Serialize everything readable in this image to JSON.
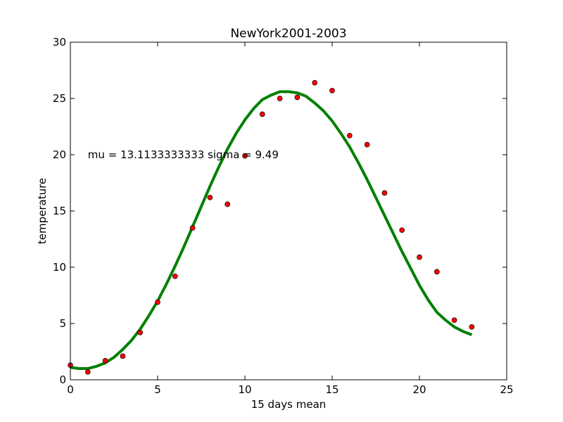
{
  "chart_data": {
    "type": "scatter",
    "title": "NewYork2001-2003",
    "xlabel": "15 days mean",
    "ylabel": "temperature",
    "xlim": [
      0,
      25
    ],
    "ylim": [
      0,
      30
    ],
    "xticks": [
      0,
      5,
      10,
      15,
      20,
      25
    ],
    "yticks": [
      0,
      5,
      10,
      15,
      20,
      25,
      30
    ],
    "grid": false,
    "annotation": {
      "text": "mu = 13.1133333333 sigma = 9.49",
      "x": 1,
      "y": 20
    },
    "points": {
      "color": "#ff0000",
      "x": [
        0,
        1,
        2,
        3,
        4,
        5,
        6,
        7,
        8,
        9,
        10,
        11,
        12,
        13,
        14,
        15,
        16,
        17,
        18,
        19,
        20,
        21,
        22,
        23
      ],
      "y": [
        1.3,
        0.7,
        1.7,
        2.1,
        4.2,
        6.9,
        9.2,
        13.5,
        16.2,
        15.6,
        19.9,
        23.6,
        25.0,
        25.1,
        26.4,
        25.7,
        21.7,
        20.9,
        16.6,
        13.3,
        10.9,
        9.6,
        5.3,
        4.7
      ]
    },
    "fit_curve": {
      "color": "#008000",
      "x": [
        0,
        0.5,
        1,
        1.5,
        2,
        2.5,
        3,
        3.5,
        4,
        4.5,
        5,
        5.5,
        6,
        6.5,
        7,
        7.5,
        8,
        8.5,
        9,
        9.5,
        10,
        10.5,
        11,
        11.5,
        12,
        12.5,
        13,
        13.5,
        14,
        14.5,
        15,
        15.5,
        16,
        16.5,
        17,
        17.5,
        18,
        18.5,
        19,
        19.5,
        20,
        20.5,
        21,
        21.5,
        22,
        22.5,
        23
      ],
      "y": [
        1.1,
        1.0,
        1.0,
        1.2,
        1.5,
        2.0,
        2.7,
        3.5,
        4.5,
        5.7,
        7.0,
        8.5,
        10.1,
        11.8,
        13.6,
        15.4,
        17.2,
        18.9,
        20.5,
        21.9,
        23.1,
        24.1,
        24.9,
        25.3,
        25.6,
        25.6,
        25.5,
        25.2,
        24.6,
        23.9,
        23.0,
        21.9,
        20.7,
        19.3,
        17.8,
        16.2,
        14.6,
        13.0,
        11.4,
        9.9,
        8.4,
        7.1,
        6.0,
        5.3,
        4.7,
        4.3,
        4.0
      ]
    }
  }
}
